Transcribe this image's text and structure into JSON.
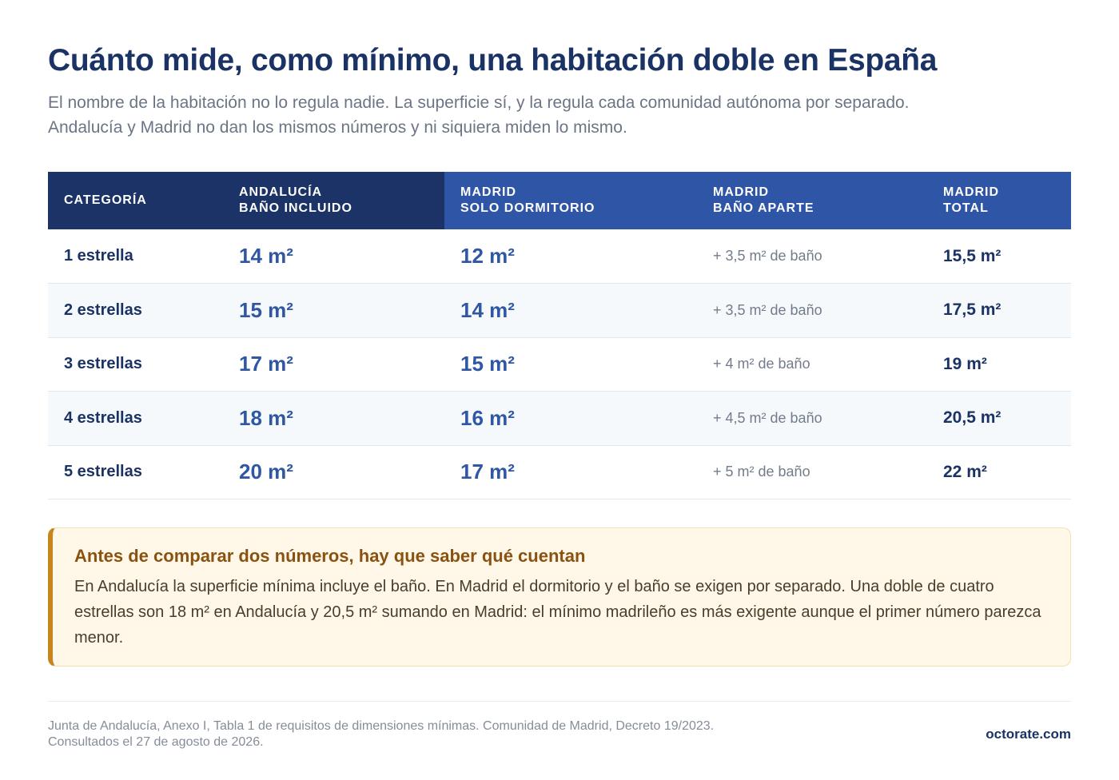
{
  "header": {
    "title": "Cuánto mide, como mínimo, una habitación doble en España",
    "subtitle": "El nombre de la habitación no lo regula nadie. La superficie sí, y la regula cada comunidad autónoma por separado. Andalucía y Madrid no dan los mismos números y ni siquiera miden lo mismo."
  },
  "table": {
    "columns": [
      {
        "line1": "CATEGORÍA",
        "line2": ""
      },
      {
        "line1": "ANDALUCÍA",
        "line2": "BAÑO INCLUIDO"
      },
      {
        "line1": "MADRID",
        "line2": "SOLO DORMITORIO"
      },
      {
        "line1": "MADRID",
        "line2": "BAÑO APARTE"
      },
      {
        "line1": "MADRID",
        "line2": "TOTAL"
      }
    ],
    "rows": [
      {
        "category": "1 estrella",
        "andalucia": "14 m²",
        "madrid_room": "12 m²",
        "madrid_bath": "+ 3,5 m² de baño",
        "madrid_total": "15,5 m²"
      },
      {
        "category": "2 estrellas",
        "andalucia": "15 m²",
        "madrid_room": "14 m²",
        "madrid_bath": "+ 3,5 m² de baño",
        "madrid_total": "17,5 m²"
      },
      {
        "category": "3 estrellas",
        "andalucia": "17 m²",
        "madrid_room": "15 m²",
        "madrid_bath": "+ 4 m² de baño",
        "madrid_total": "19 m²"
      },
      {
        "category": "4 estrellas",
        "andalucia": "18 m²",
        "madrid_room": "16 m²",
        "madrid_bath": "+ 4,5 m² de baño",
        "madrid_total": "20,5 m²"
      },
      {
        "category": "5 estrellas",
        "andalucia": "20 m²",
        "madrid_room": "17 m²",
        "madrid_bath": "+ 5 m² de baño",
        "madrid_total": "22 m²"
      }
    ]
  },
  "note": {
    "title": "Antes de comparar dos números, hay que saber qué cuentan",
    "body": "En Andalucía la superficie mínima incluye el baño. En Madrid el dormitorio y el baño se exigen por separado. Una doble de cuatro estrellas son 18 m² en Andalucía y 20,5 m² sumando en Madrid: el mínimo madrileño es más exigente aunque el primer número parezca menor."
  },
  "footer": {
    "source_line1": "Junta de Andalucía, Anexo I, Tabla 1 de requisitos de dimensiones mínimas. Comunidad de Madrid, Decreto 19/2023.",
    "source_line2": "Consultados el 27 de agosto de 2026.",
    "brand": "octorate.com"
  },
  "colors": {
    "header_dark": "#1b3366",
    "header_blue": "#2f56a6",
    "note_accent": "#c7851d",
    "note_background": "#fff8e8"
  }
}
